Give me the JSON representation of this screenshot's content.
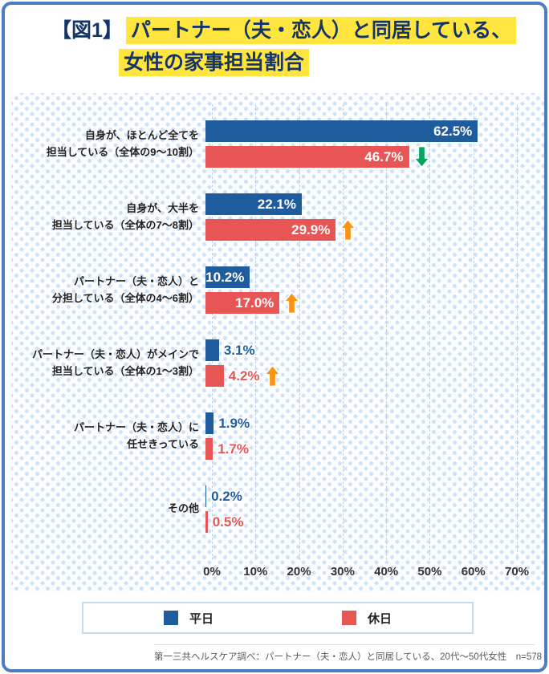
{
  "header": {
    "prefix": "【図1】",
    "line1": "パートナー（夫・恋人）と同居している、",
    "line2": "女性の家事担当割合"
  },
  "footer": {
    "source": "第一三共ヘルスケア調べ：パートナー（夫・恋人）と同居している、20代～50代女性　n=578"
  },
  "chart_data": {
    "type": "bar",
    "orientation": "horizontal",
    "title": "【図1】パートナー（夫・恋人）と同居している、女性の家事担当割合",
    "categories": [
      [
        "自身が、ほとんど全てを",
        "担当している（全体の9～10割）"
      ],
      [
        "自身が、大半を",
        "担当している（全体の7～8割）"
      ],
      [
        "パートナー（夫・恋人）と",
        "分担している（全体の4～6割）"
      ],
      [
        "パートナー（夫・恋人）がメインで",
        "担当している（全体の1～3割）"
      ],
      [
        "パートナー（夫・恋人）に",
        "任せきっている"
      ],
      [
        "その他"
      ]
    ],
    "series": [
      {
        "name": "平日",
        "color": "#1f5c9e",
        "values": [
          62.5,
          22.1,
          10.2,
          3.1,
          1.9,
          0.2
        ]
      },
      {
        "name": "休日",
        "color": "#e85555",
        "values": [
          46.7,
          29.9,
          17.0,
          4.2,
          1.7,
          0.5
        ]
      }
    ],
    "arrows": [
      "down",
      "up",
      "up",
      "up",
      null,
      null
    ],
    "arrow_colors": {
      "up": "#f99415",
      "down": "#00a55e"
    },
    "xlim": [
      0,
      70
    ],
    "ticks": [
      "0%",
      "10%",
      "20%",
      "30%",
      "40%",
      "50%",
      "60%",
      "70%"
    ],
    "grid": true,
    "legend_position": "bottom"
  }
}
